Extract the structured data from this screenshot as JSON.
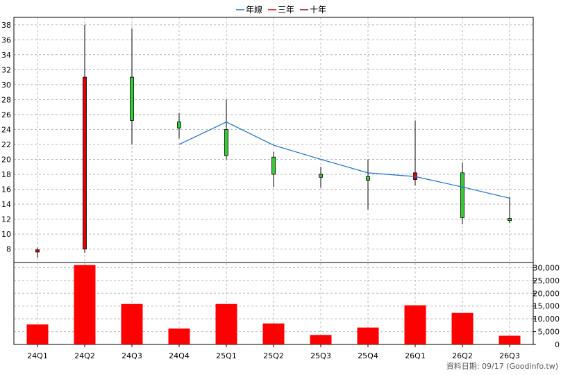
{
  "legend": [
    {
      "label": "年線",
      "color": "#1a6fd1"
    },
    {
      "label": "三年",
      "color": "#e00000"
    },
    {
      "label": "十年",
      "color": "#8b0038"
    }
  ],
  "footer": "資料日期: 09/17  (Goodinfo.tw)",
  "chart_data": {
    "type": "candlestick",
    "categories": [
      "24Q1",
      "24Q2",
      "24Q3",
      "24Q4",
      "25Q1",
      "25Q2",
      "25Q3",
      "25Q4",
      "26Q1",
      "26Q2",
      "26Q3"
    ],
    "price_axis": {
      "ylim": [
        6.2,
        39
      ],
      "ticks": [
        8,
        10,
        12,
        14,
        16,
        18,
        20,
        22,
        24,
        26,
        28,
        30,
        32,
        34,
        36,
        38
      ]
    },
    "volume_axis": {
      "ylim": [
        0,
        32000
      ],
      "ticks": [
        0,
        5000,
        10000,
        15000,
        20000,
        25000,
        30000
      ],
      "tick_labels": [
        "0",
        "5,000",
        "10,000",
        "15,000",
        "20,000",
        "25,000",
        "30,000"
      ]
    },
    "candles": [
      {
        "open": 7.6,
        "high": 8.2,
        "low": 6.8,
        "close": 7.9
      },
      {
        "open": 8.0,
        "high": 38.0,
        "low": 7.5,
        "close": 31.0
      },
      {
        "open": 31.0,
        "high": 37.5,
        "low": 22.0,
        "close": 25.2
      },
      {
        "open": 25.0,
        "high": 26.2,
        "low": 22.8,
        "close": 24.2
      },
      {
        "open": 24.0,
        "high": 28.0,
        "low": 20.0,
        "close": 20.5
      },
      {
        "open": 20.3,
        "high": 21.0,
        "low": 16.3,
        "close": 18.0
      },
      {
        "open": 18.0,
        "high": 19.0,
        "low": 16.2,
        "close": 17.6
      },
      {
        "open": 17.7,
        "high": 20.0,
        "low": 13.3,
        "close": 17.2
      },
      {
        "open": 17.3,
        "high": 25.2,
        "low": 16.5,
        "close": 18.2
      },
      {
        "open": 18.2,
        "high": 19.6,
        "low": 11.3,
        "close": 12.2
      },
      {
        "open": 12.1,
        "high": 15.0,
        "low": 11.5,
        "close": 11.8
      }
    ],
    "year_line": {
      "name": "年線",
      "start_index": 3,
      "values": [
        22.0,
        25.0,
        21.9,
        20.0,
        18.2,
        17.7,
        16.3,
        14.8
      ]
    },
    "volume": [
      7800,
      31000,
      15800,
      6200,
      15800,
      8200,
      3700,
      6600,
      15300,
      12300,
      3400
    ],
    "colors": {
      "up": "#e00000",
      "down": "#33cc33",
      "volume": "#ff0000",
      "line": "#1a6fd1",
      "grid": "#b8b8b8"
    }
  }
}
